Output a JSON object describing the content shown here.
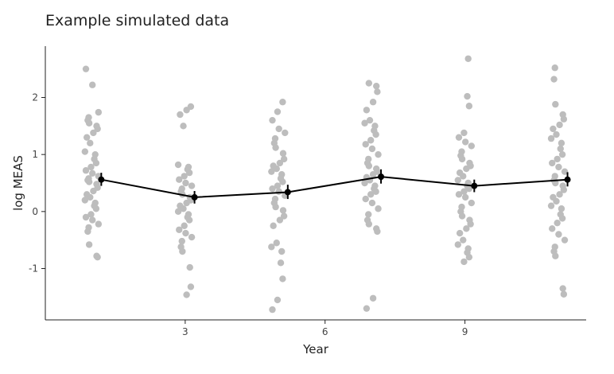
{
  "chart_data": {
    "type": "scatter",
    "title": "Example simulated data",
    "xlabel": "Year",
    "ylabel": "log MEAS",
    "xlim": [
      0.0,
      11.6
    ],
    "ylim": [
      -1.9,
      2.9
    ],
    "xticks": [
      3,
      6,
      9
    ],
    "yticks": [
      -1,
      0,
      1,
      2
    ],
    "grid": false,
    "point_color": "#bdbdbd",
    "line_color": "#000000",
    "groups": [
      {
        "x": 1,
        "points": [
          2.5,
          2.22,
          1.74,
          1.65,
          1.6,
          1.55,
          1.5,
          1.45,
          1.38,
          1.3,
          1.2,
          1.05,
          1.0,
          0.92,
          0.85,
          0.78,
          0.72,
          0.67,
          0.62,
          0.58,
          0.55,
          0.52,
          0.48,
          0.42,
          0.36,
          0.3,
          0.25,
          0.2,
          0.15,
          0.1,
          0.05,
          -0.05,
          -0.1,
          -0.15,
          -0.22,
          -0.28,
          -0.35,
          -0.58,
          -0.78,
          -0.8
        ],
        "mean": 0.56,
        "err_low": 0.45,
        "err_high": 0.68
      },
      {
        "x": 3,
        "points": [
          1.84,
          1.78,
          1.7,
          1.5,
          0.82,
          0.78,
          0.74,
          0.68,
          0.62,
          0.56,
          0.5,
          0.45,
          0.4,
          0.35,
          0.3,
          0.25,
          0.2,
          0.15,
          0.1,
          0.05,
          0.0,
          -0.05,
          -0.1,
          -0.15,
          -0.25,
          -0.32,
          -0.38,
          -0.45,
          -0.52,
          -0.62,
          -0.7,
          -0.98,
          -1.32,
          -1.46
        ],
        "mean": 0.25,
        "err_low": 0.14,
        "err_high": 0.36
      },
      {
        "x": 5,
        "points": [
          1.92,
          1.75,
          1.6,
          1.45,
          1.38,
          1.28,
          1.2,
          1.12,
          1.02,
          0.92,
          0.85,
          0.8,
          0.75,
          0.7,
          0.65,
          0.58,
          0.52,
          0.45,
          0.4,
          0.35,
          0.28,
          0.22,
          0.15,
          0.08,
          0.02,
          -0.08,
          -0.15,
          -0.25,
          -0.55,
          -0.62,
          -0.7,
          -0.9,
          -1.18,
          -1.55,
          -1.72
        ],
        "mean": 0.34,
        "err_low": 0.22,
        "err_high": 0.47
      },
      {
        "x": 7,
        "points": [
          2.25,
          2.2,
          2.1,
          1.92,
          1.78,
          1.6,
          1.55,
          1.5,
          1.42,
          1.35,
          1.25,
          1.18,
          1.1,
          1.0,
          0.92,
          0.85,
          0.8,
          0.75,
          0.7,
          0.65,
          0.6,
          0.55,
          0.5,
          0.45,
          0.4,
          0.35,
          0.3,
          0.22,
          0.15,
          0.05,
          -0.05,
          -0.15,
          -0.22,
          -0.3,
          -0.35,
          -1.52,
          -1.7
        ],
        "mean": 0.61,
        "err_low": 0.49,
        "err_high": 0.74
      },
      {
        "x": 9,
        "points": [
          2.68,
          2.02,
          1.85,
          1.38,
          1.3,
          1.22,
          1.15,
          1.05,
          0.98,
          0.92,
          0.85,
          0.8,
          0.75,
          0.68,
          0.62,
          0.55,
          0.5,
          0.45,
          0.4,
          0.35,
          0.3,
          0.25,
          0.15,
          0.08,
          0.0,
          -0.08,
          -0.15,
          -0.22,
          -0.3,
          -0.38,
          -0.5,
          -0.58,
          -0.65,
          -0.72,
          -0.8,
          -0.88
        ],
        "mean": 0.45,
        "err_low": 0.34,
        "err_high": 0.56
      },
      {
        "x": 11,
        "points": [
          2.52,
          2.32,
          1.88,
          1.7,
          1.62,
          1.52,
          1.45,
          1.35,
          1.28,
          1.2,
          1.1,
          1.0,
          0.92,
          0.85,
          0.78,
          0.7,
          0.62,
          0.55,
          0.5,
          0.45,
          0.38,
          0.3,
          0.25,
          0.18,
          0.1,
          0.05,
          -0.05,
          -0.12,
          -0.2,
          -0.3,
          -0.4,
          -0.5,
          -0.62,
          -0.7,
          -0.78,
          -1.35,
          -1.45
        ],
        "mean": 0.56,
        "err_low": 0.44,
        "err_high": 0.69
      }
    ]
  }
}
